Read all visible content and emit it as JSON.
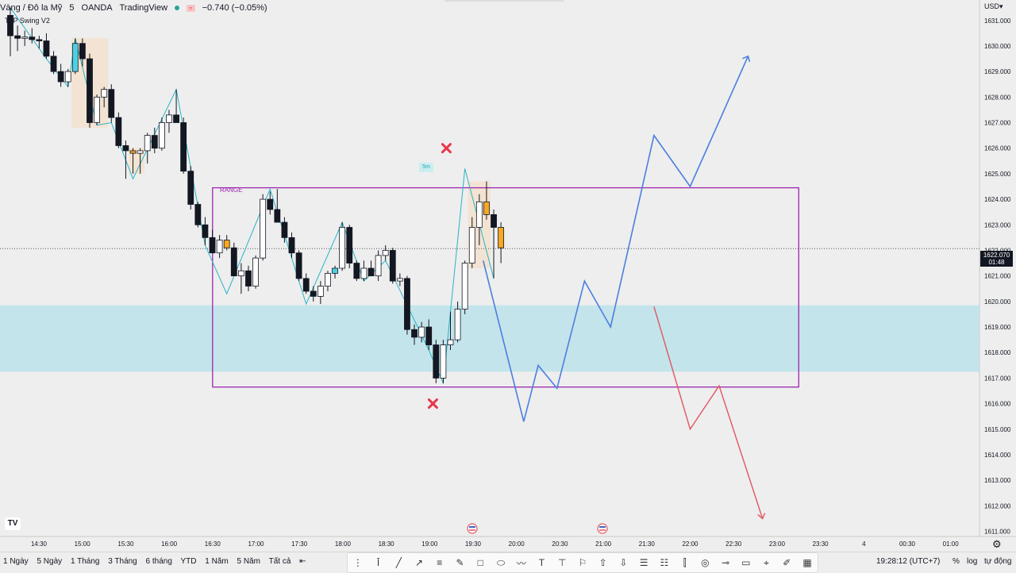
{
  "header": {
    "symbol": "Vàng / Đô la Mỹ",
    "interval": "5",
    "broker": "OANDA",
    "platform": "TradingView",
    "change": "−0.740 (−0.05%)",
    "indicator": "TLP Swing V2"
  },
  "axis": {
    "currency": "USD",
    "last_price": "1622.070",
    "countdown": "01:48",
    "y_ticks": [
      "1631.000",
      "1630.000",
      "1629.000",
      "1628.000",
      "1627.000",
      "1626.000",
      "1625.000",
      "1624.000",
      "1623.000",
      "1622.000",
      "1621.000",
      "1620.000",
      "1619.000",
      "1618.000",
      "1617.000",
      "1616.000",
      "1615.000",
      "1614.000",
      "1613.000",
      "1612.000",
      "1611.000"
    ],
    "x_ticks": [
      "14:30",
      "15:00",
      "15:30",
      "16:00",
      "16:30",
      "17:00",
      "17:30",
      "18:00",
      "18:30",
      "19:00",
      "19:30",
      "20:00",
      "20:30",
      "21:00",
      "21:30",
      "22:00",
      "22:30",
      "23:00",
      "23:30",
      "4",
      "00:30",
      "01:00"
    ]
  },
  "annotations": {
    "range_label": "RANGE",
    "tf_label": "5m"
  },
  "colors": {
    "up": "#ffffff",
    "down": "#131722",
    "highlight_up": "#4dd0e1",
    "highlight_down": "#f7a823",
    "range_box": "#9c27b0",
    "zone": "#b2e0ea",
    "bull_path": "#4a7fe0",
    "bear_path": "#e05560",
    "swing": "#26b4c6",
    "cross": "#e8364b"
  },
  "bottom": {
    "ranges": [
      "1 Ngày",
      "5 Ngày",
      "1 Tháng",
      "3 Tháng",
      "6 tháng",
      "YTD",
      "1 Năm",
      "5 Năm",
      "Tất cả"
    ],
    "clock": "19:28:12 (UTC+7)",
    "percent": "%",
    "log": "log",
    "auto": "tự động"
  },
  "chart_data": {
    "type": "candlestick",
    "y_range": [
      1610.8,
      1631.8
    ],
    "range_box": {
      "high": 1624.45,
      "low": 1616.65,
      "start": "16:30",
      "end": "23:15"
    },
    "zone": {
      "high": 1619.85,
      "low": 1617.25
    },
    "last_price": 1622.07,
    "candles": [
      {
        "o": 1631.2,
        "h": 1631.5,
        "l": 1629.6,
        "c": 1630.4
      },
      {
        "o": 1630.4,
        "h": 1630.8,
        "l": 1629.8,
        "c": 1630.3
      },
      {
        "o": 1630.3,
        "h": 1630.6,
        "l": 1630.0,
        "c": 1630.35
      },
      {
        "o": 1630.35,
        "h": 1630.7,
        "l": 1630.1,
        "c": 1630.25
      },
      {
        "o": 1630.25,
        "h": 1630.4,
        "l": 1629.9,
        "c": 1630.2
      },
      {
        "o": 1630.2,
        "h": 1630.5,
        "l": 1629.5,
        "c": 1629.6
      },
      {
        "o": 1629.6,
        "h": 1629.8,
        "l": 1628.9,
        "c": 1629.0
      },
      {
        "o": 1629.0,
        "h": 1629.3,
        "l": 1628.4,
        "c": 1628.6
      },
      {
        "o": 1628.6,
        "h": 1629.1,
        "l": 1628.4,
        "c": 1629.0
      },
      {
        "o": 1629.0,
        "h": 1630.3,
        "l": 1628.9,
        "c": 1630.1
      },
      {
        "o": 1630.1,
        "h": 1630.3,
        "l": 1629.2,
        "c": 1629.5
      },
      {
        "o": 1629.5,
        "h": 1629.7,
        "l": 1626.8,
        "c": 1627.0
      },
      {
        "o": 1627.0,
        "h": 1628.1,
        "l": 1626.9,
        "c": 1628.0
      },
      {
        "o": 1628.0,
        "h": 1628.4,
        "l": 1627.6,
        "c": 1628.3
      },
      {
        "o": 1628.3,
        "h": 1628.5,
        "l": 1627.0,
        "c": 1627.2
      },
      {
        "o": 1627.2,
        "h": 1627.4,
        "l": 1626.0,
        "c": 1626.1
      },
      {
        "o": 1626.1,
        "h": 1626.3,
        "l": 1624.8,
        "c": 1625.9
      },
      {
        "o": 1625.9,
        "h": 1626.0,
        "l": 1625.0,
        "c": 1625.8
      },
      {
        "o": 1625.8,
        "h": 1626.0,
        "l": 1625.0,
        "c": 1625.9
      },
      {
        "o": 1625.9,
        "h": 1626.6,
        "l": 1625.4,
        "c": 1626.5
      },
      {
        "o": 1626.5,
        "h": 1626.8,
        "l": 1625.8,
        "c": 1626.0
      },
      {
        "o": 1626.0,
        "h": 1627.2,
        "l": 1625.9,
        "c": 1627.0
      },
      {
        "o": 1627.0,
        "h": 1627.5,
        "l": 1626.6,
        "c": 1627.3
      },
      {
        "o": 1627.3,
        "h": 1628.3,
        "l": 1627.1,
        "c": 1627.0
      },
      {
        "o": 1627.0,
        "h": 1627.2,
        "l": 1625.0,
        "c": 1625.1
      },
      {
        "o": 1625.1,
        "h": 1625.3,
        "l": 1623.6,
        "c": 1623.8
      },
      {
        "o": 1623.8,
        "h": 1623.9,
        "l": 1622.9,
        "c": 1623.0
      },
      {
        "o": 1623.0,
        "h": 1623.3,
        "l": 1622.2,
        "c": 1622.5
      },
      {
        "o": 1622.5,
        "h": 1622.8,
        "l": 1621.9,
        "c": 1621.9
      },
      {
        "o": 1621.9,
        "h": 1622.6,
        "l": 1621.7,
        "c": 1622.4
      },
      {
        "o": 1622.4,
        "h": 1622.6,
        "l": 1622.0,
        "c": 1622.1
      },
      {
        "o": 1622.1,
        "h": 1622.3,
        "l": 1621.0,
        "c": 1621.0
      },
      {
        "o": 1621.0,
        "h": 1621.5,
        "l": 1620.3,
        "c": 1621.2
      },
      {
        "o": 1621.2,
        "h": 1621.4,
        "l": 1620.4,
        "c": 1620.6
      },
      {
        "o": 1620.6,
        "h": 1621.8,
        "l": 1620.5,
        "c": 1621.7
      },
      {
        "o": 1621.7,
        "h": 1624.2,
        "l": 1621.6,
        "c": 1624.0
      },
      {
        "o": 1624.0,
        "h": 1624.3,
        "l": 1623.4,
        "c": 1623.6
      },
      {
        "o": 1623.6,
        "h": 1624.4,
        "l": 1623.2,
        "c": 1623.1
      },
      {
        "o": 1623.1,
        "h": 1623.3,
        "l": 1622.3,
        "c": 1622.5
      },
      {
        "o": 1622.5,
        "h": 1622.7,
        "l": 1621.7,
        "c": 1621.9
      },
      {
        "o": 1621.9,
        "h": 1622.0,
        "l": 1620.8,
        "c": 1620.9
      },
      {
        "o": 1620.9,
        "h": 1621.1,
        "l": 1620.3,
        "c": 1620.4
      },
      {
        "o": 1620.4,
        "h": 1620.6,
        "l": 1620.0,
        "c": 1620.2
      },
      {
        "o": 1620.2,
        "h": 1620.8,
        "l": 1619.9,
        "c": 1620.6
      },
      {
        "o": 1620.6,
        "h": 1621.2,
        "l": 1620.4,
        "c": 1621.1
      },
      {
        "o": 1621.1,
        "h": 1621.4,
        "l": 1620.9,
        "c": 1621.3
      },
      {
        "o": 1621.3,
        "h": 1623.1,
        "l": 1621.2,
        "c": 1622.9
      },
      {
        "o": 1622.9,
        "h": 1623.0,
        "l": 1621.3,
        "c": 1621.5
      },
      {
        "o": 1621.5,
        "h": 1621.6,
        "l": 1620.8,
        "c": 1620.9
      },
      {
        "o": 1620.9,
        "h": 1621.6,
        "l": 1620.8,
        "c": 1621.3
      },
      {
        "o": 1621.3,
        "h": 1621.6,
        "l": 1621.0,
        "c": 1621.0
      },
      {
        "o": 1621.0,
        "h": 1622.0,
        "l": 1620.8,
        "c": 1621.8
      },
      {
        "o": 1621.8,
        "h": 1622.2,
        "l": 1621.6,
        "c": 1622.0
      },
      {
        "o": 1622.0,
        "h": 1622.1,
        "l": 1620.7,
        "c": 1620.8
      },
      {
        "o": 1620.8,
        "h": 1621.1,
        "l": 1620.6,
        "c": 1620.9
      },
      {
        "o": 1620.9,
        "h": 1621.0,
        "l": 1618.7,
        "c": 1618.9
      },
      {
        "o": 1618.9,
        "h": 1619.1,
        "l": 1618.3,
        "c": 1618.6
      },
      {
        "o": 1618.6,
        "h": 1619.2,
        "l": 1618.4,
        "c": 1619.0
      },
      {
        "o": 1619.0,
        "h": 1619.3,
        "l": 1618.1,
        "c": 1618.3
      },
      {
        "o": 1618.3,
        "h": 1618.5,
        "l": 1616.8,
        "c": 1617.0
      },
      {
        "o": 1617.0,
        "h": 1618.5,
        "l": 1616.8,
        "c": 1618.3
      },
      {
        "o": 1618.3,
        "h": 1619.6,
        "l": 1618.1,
        "c": 1618.5
      },
      {
        "o": 1618.5,
        "h": 1620.0,
        "l": 1618.4,
        "c": 1619.7
      },
      {
        "o": 1619.7,
        "h": 1621.6,
        "l": 1619.5,
        "c": 1621.5
      },
      {
        "o": 1621.5,
        "h": 1623.3,
        "l": 1621.3,
        "c": 1622.9
      },
      {
        "o": 1622.9,
        "h": 1624.2,
        "l": 1622.2,
        "c": 1623.9
      },
      {
        "o": 1623.9,
        "h": 1624.7,
        "l": 1623.2,
        "c": 1623.4
      },
      {
        "o": 1623.4,
        "h": 1623.6,
        "l": 1620.9,
        "c": 1622.9
      },
      {
        "o": 1622.9,
        "h": 1623.1,
        "l": 1621.5,
        "c": 1622.1
      }
    ],
    "highlight": {
      "up": [
        9,
        17,
        30,
        45,
        48
      ],
      "down": [
        13,
        17,
        30,
        49,
        66,
        68
      ]
    },
    "shade_ranges": [
      [
        9,
        13
      ],
      [
        17,
        18
      ],
      [
        64,
        66
      ]
    ],
    "swing_points": [
      [
        0,
        1631.5
      ],
      [
        5,
        1629.5
      ],
      [
        8,
        1628.4
      ],
      [
        9,
        1630.3
      ],
      [
        12,
        1626.9
      ],
      [
        14,
        1627.0
      ],
      [
        17,
        1624.8
      ],
      [
        23,
        1628.3
      ],
      [
        27,
        1622.2
      ],
      [
        30,
        1620.3
      ],
      [
        36,
        1624.4
      ],
      [
        41,
        1619.9
      ],
      [
        46,
        1623.1
      ],
      [
        49,
        1620.8
      ],
      [
        52,
        1621.6
      ],
      [
        58,
        1618.1
      ],
      [
        60,
        1616.8
      ],
      [
        63,
        1625.2
      ],
      [
        67,
        1620.9
      ]
    ],
    "bull_path": [
      [
        "19:37",
        1621.6
      ],
      [
        "20:05",
        1615.3
      ],
      [
        "20:15",
        1617.5
      ],
      [
        "20:28",
        1616.6
      ],
      [
        "20:47",
        1620.8
      ],
      [
        "21:05",
        1619.0
      ],
      [
        "21:35",
        1626.5
      ],
      [
        "22:00",
        1624.5
      ],
      [
        "22:40",
        1629.6
      ]
    ],
    "bear_path": [
      [
        "21:35",
        1619.8
      ],
      [
        "22:00",
        1615.0
      ],
      [
        "22:20",
        1616.7
      ],
      [
        "22:50",
        1611.5
      ]
    ],
    "markers": [
      [
        "19:05",
        1626.0
      ],
      [
        "19:05",
        1616.0
      ]
    ]
  }
}
